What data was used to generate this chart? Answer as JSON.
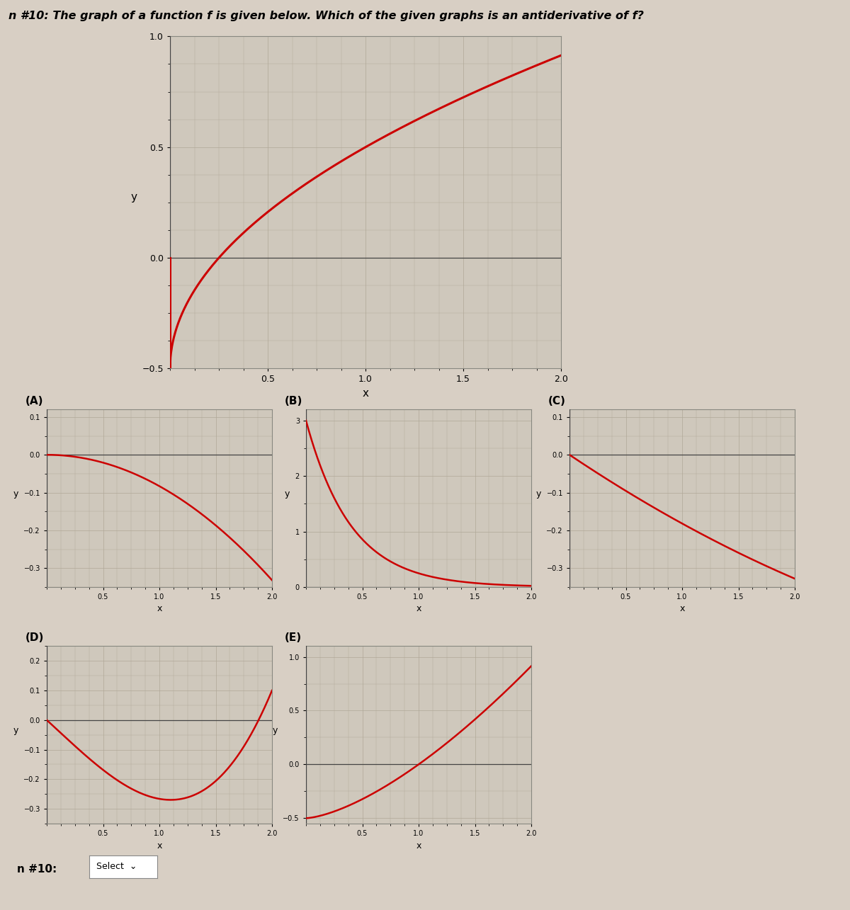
{
  "title": "n #10: The graph of a function f is given below. Which of the given graphs is an antiderivative of f?",
  "curve_color": "#cc0000",
  "bg_color": "#d8cfc4",
  "grid_bg_color": "#cfc8bc",
  "grid_color": "#b0a898",
  "spine_color": "#888880",
  "main_xlim": [
    0,
    2
  ],
  "main_ylim": [
    -0.5,
    1.0
  ],
  "main_xticks": [
    0.5,
    1.0,
    1.5,
    2.0
  ],
  "main_yticks": [
    -0.5,
    0.0,
    0.5,
    1.0
  ],
  "sub_xlim": [
    0,
    2
  ],
  "A_ylim": [
    -0.35,
    0.12
  ],
  "A_yticks": [
    -0.3,
    -0.2,
    -0.1,
    0.0,
    0.1
  ],
  "B_ylim": [
    0,
    3.2
  ],
  "B_yticks": [
    0,
    1,
    2,
    3
  ],
  "C_ylim": [
    -0.35,
    0.12
  ],
  "C_yticks": [
    -0.3,
    -0.2,
    -0.1,
    0.0,
    0.1
  ],
  "D_ylim": [
    -0.35,
    0.25
  ],
  "D_yticks": [
    -0.3,
    -0.2,
    -0.1,
    0.0,
    0.1,
    0.2
  ],
  "E_ylim": [
    -0.55,
    1.1
  ],
  "E_yticks": [
    -0.5,
    0.0,
    0.5,
    1.0
  ],
  "sub_xticks": [
    0.5,
    1.0,
    1.5,
    2.0
  ]
}
